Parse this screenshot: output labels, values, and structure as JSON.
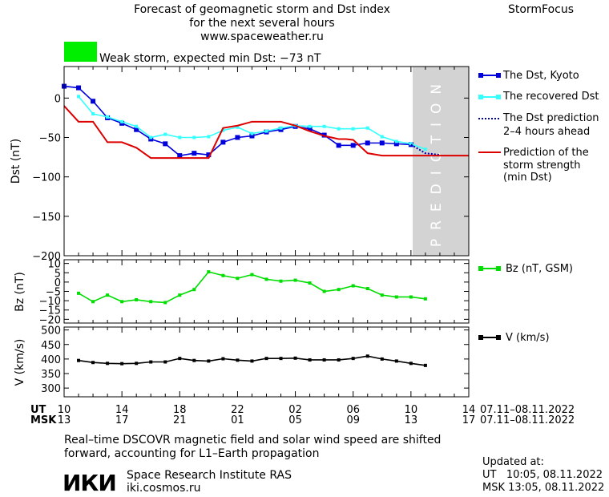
{
  "header": {
    "title_line1": "Forecast of geomagnetic storm and Dst index",
    "title_line2": "for the next several hours",
    "url": "www.spaceweather.ru",
    "brand": "StormFocus",
    "storm_label": "Weak storm, expected min Dst: −73 nT",
    "storm_color": "#00ee00"
  },
  "prediction_text": "PREDICTION",
  "colors": {
    "kyoto": "#0000dd",
    "recovered": "#33ffff",
    "predicted": "#0000aa",
    "strength": "#dd0000",
    "bz": "#00dd00",
    "speed": "#000000",
    "prediction_band": "#d3d3d3"
  },
  "legend": {
    "kyoto": "The Dst, Kyoto",
    "recovered": "The recovered Dst",
    "prediction_1": "The Dst prediction",
    "prediction_2": "2–4 hours ahead",
    "strength_1": "Prediction of the",
    "strength_2": "storm strength",
    "strength_3": "(min Dst)",
    "bz": "Bz (nT, GSM)",
    "speed": "V (km/s)"
  },
  "time_axis": {
    "ut_label": "UT",
    "msk_label": "MSK",
    "ut_ticks": [
      "10",
      "14",
      "18",
      "22",
      "02",
      "06",
      "10",
      "14"
    ],
    "msk_ticks": [
      "13",
      "17",
      "21",
      "01",
      "05",
      "09",
      "13",
      "17"
    ],
    "ut_range": "07.11–08.11.2022",
    "msk_range": "07.11–08.11.2022"
  },
  "footer": {
    "note_line1": "Real–time DSCOVR magnetic field and solar wind speed are shifted",
    "note_line2": "forward, accounting for L1–Earth propagation",
    "logo": "ИКИ",
    "institute": "Space Research Institute RAS",
    "site": "iki.cosmos.ru",
    "updated_label": "Updated at:",
    "updated_ut": "UT   10:05, 08.11.2022",
    "updated_msk": "MSK 13:05, 08.11.2022"
  },
  "chart_data": [
    {
      "type": "line",
      "ylabel": "Dst (nT)",
      "xlim": [
        0,
        28
      ],
      "ylim": [
        -200,
        40
      ],
      "yticks": [
        0,
        -50,
        -100,
        -150,
        -200
      ],
      "prediction_start": 24,
      "series": [
        {
          "name": "The Dst, Kyoto",
          "key": "kyoto",
          "x": [
            0,
            1,
            2,
            3,
            4,
            5,
            6,
            7,
            8,
            9,
            10,
            11,
            12,
            13,
            14,
            15,
            16,
            17,
            18,
            19,
            20,
            21,
            22,
            23,
            24
          ],
          "values": [
            15,
            13,
            -4,
            -25,
            -32,
            -40,
            -52,
            -58,
            -73,
            -70,
            -72,
            -56,
            -50,
            -48,
            -43,
            -40,
            -36,
            -39,
            -47,
            -60,
            -60,
            -57,
            -57,
            -58,
            -59
          ]
        },
        {
          "name": "The recovered Dst",
          "key": "recovered",
          "x": [
            1,
            2,
            3,
            4,
            5,
            6,
            7,
            8,
            9,
            10,
            11,
            12,
            13,
            14,
            15,
            16,
            17,
            18,
            19,
            20,
            21,
            22,
            23,
            24,
            25
          ],
          "values": [
            2,
            -20,
            -24,
            -30,
            -36,
            -50,
            -46,
            -50,
            -50,
            -49,
            -41,
            -37,
            -45,
            -42,
            -38,
            -35,
            -36,
            -36,
            -39,
            -39,
            -38,
            -49,
            -55,
            -58,
            -65
          ]
        },
        {
          "name": "The Dst prediction 2–4 hours ahead",
          "key": "predicted",
          "x": [
            24,
            25,
            26
          ],
          "values": [
            -59,
            -70,
            -72
          ]
        },
        {
          "name": "Prediction of the storm strength (min Dst)",
          "key": "strength",
          "x": [
            0,
            1,
            2,
            3,
            4,
            5,
            6,
            7,
            8,
            9,
            10,
            11,
            12,
            13,
            14,
            15,
            16,
            17,
            17.5,
            18,
            19,
            19.5,
            20,
            21,
            22,
            23,
            24,
            25,
            26,
            27,
            28
          ],
          "values": [
            -10,
            -30,
            -30,
            -56,
            -56,
            -63,
            -76,
            -76,
            -76,
            -76,
            -76,
            -38,
            -35,
            -30,
            -30,
            -30,
            -35,
            -42,
            -45,
            -48,
            -52,
            -52,
            -53,
            -70,
            -73,
            -73,
            -73,
            -73,
            -73,
            -73,
            -73
          ]
        }
      ]
    },
    {
      "type": "line",
      "ylabel": "Bz (nT)",
      "ylim": [
        -22,
        12
      ],
      "yticks": [
        10,
        5,
        0,
        -5,
        -10,
        -15,
        -20
      ],
      "series": [
        {
          "name": "Bz (nT, GSM)",
          "key": "bz",
          "x": [
            1,
            2,
            3,
            4,
            5,
            6,
            7,
            8,
            9,
            10,
            11,
            12,
            13,
            14,
            15,
            16,
            17,
            18,
            19,
            20,
            21,
            22,
            23,
            24,
            25
          ],
          "values": [
            -6,
            -10.5,
            -7,
            -10.5,
            -9.5,
            -10.5,
            -11,
            -7,
            -4,
            5.5,
            3.5,
            2,
            4,
            1.5,
            0.5,
            1,
            -0.5,
            -5,
            -4,
            -2,
            -3.5,
            -7,
            -8,
            -8,
            -9
          ]
        }
      ]
    },
    {
      "type": "line",
      "ylabel": "V (km/s)",
      "ylim": [
        270,
        510
      ],
      "yticks": [
        500,
        450,
        400,
        350,
        300
      ],
      "series": [
        {
          "name": "V (km/s)",
          "key": "speed",
          "x": [
            1,
            2,
            3,
            4,
            5,
            6,
            7,
            8,
            9,
            10,
            11,
            12,
            13,
            14,
            15,
            16,
            17,
            18,
            19,
            20,
            21,
            22,
            23,
            24,
            25
          ],
          "values": [
            395,
            388,
            385,
            384,
            385,
            390,
            390,
            402,
            395,
            393,
            401,
            396,
            393,
            402,
            402,
            403,
            397,
            397,
            397,
            402,
            410,
            400,
            393,
            385,
            378
          ]
        }
      ]
    }
  ]
}
